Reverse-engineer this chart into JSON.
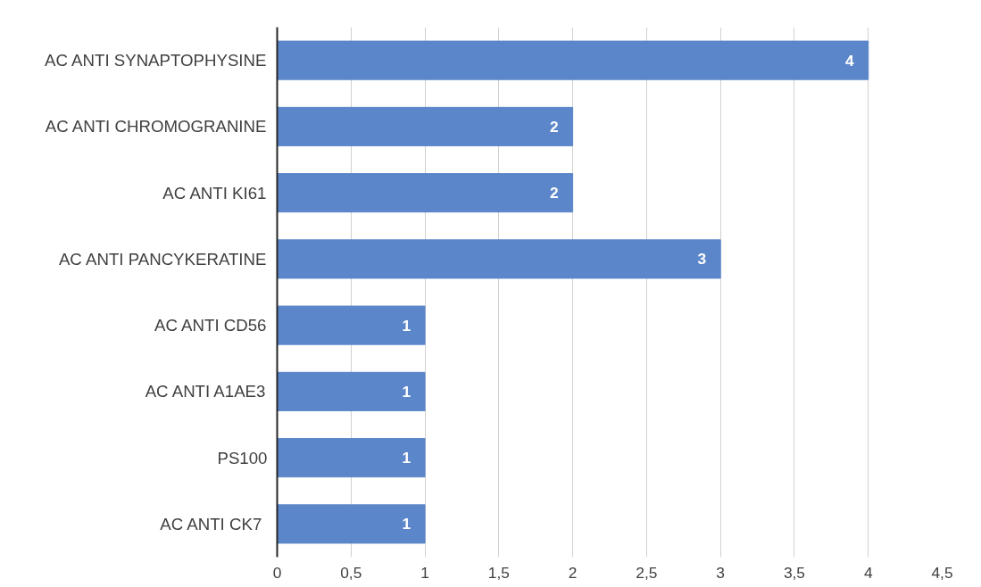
{
  "chart_data": {
    "type": "bar",
    "orientation": "horizontal",
    "categories": [
      "AC ANTI SYNAPTOPHYSINE",
      "AC ANTI CHROMOGRANINE",
      "AC ANTI KI61",
      "AC ANTI PANCYKERATINE",
      "AC ANTI CD56",
      "AC ANTI A1AE3",
      "PS100",
      "AC ANTI  CK7"
    ],
    "values": [
      4,
      2,
      2,
      3,
      1,
      1,
      1,
      1
    ],
    "color": "#5b86c9",
    "xlim": [
      0,
      4.5
    ],
    "xticks": [
      0,
      {
        "value": 0.5,
        "label": "0,5"
      },
      1,
      {
        "value": 1.5,
        "label": "1,5"
      },
      2,
      {
        "value": 2.5,
        "label": "2,5"
      },
      3,
      {
        "value": 3.5,
        "label": "3,5"
      },
      4,
      {
        "value": 4.5,
        "label": "4,5"
      }
    ],
    "grid": "x",
    "data_labels": true
  }
}
